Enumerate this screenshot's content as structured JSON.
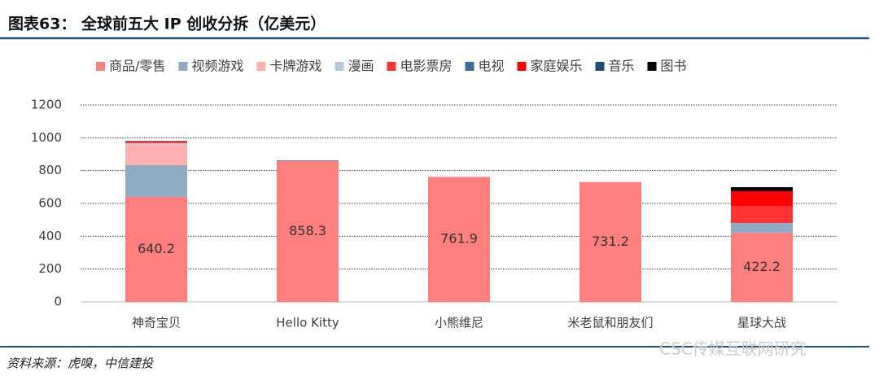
{
  "chart_data": {
    "type": "stacked_bar",
    "title": "图表63：  全球前五大 IP 创收分拆（亿美元）",
    "source": "资料来源：虎嗅，中信建投",
    "watermark": "CSC传媒互联网研究",
    "categories": [
      "神奇宝贝",
      "Hello Kitty",
      "小熊维尼",
      "米老鼠和朋友们",
      "星球大战"
    ],
    "series": [
      {
        "name": "商品/零售",
        "color": "#ff7f7f",
        "values": [
          640.2,
          858.3,
          761.9,
          731.2,
          422.2
        ],
        "data_labels": true
      },
      {
        "name": "视频游戏",
        "color": "#8eaac4",
        "values": [
          193,
          null,
          null,
          null,
          59
        ]
      },
      {
        "name": "卡牌游戏",
        "color": "#ffb0b0",
        "values": [
          128,
          null,
          null,
          null,
          null
        ]
      },
      {
        "name": "漫画",
        "color": "#b4c8d8",
        "values": [
          6,
          null,
          null,
          null,
          null
        ]
      },
      {
        "name": "电影票房",
        "color": "#ff3333",
        "values": [
          10,
          null,
          null,
          null,
          104
        ]
      },
      {
        "name": "电视",
        "color": "#3c6e96",
        "values": [
          5,
          4,
          null,
          null,
          null
        ]
      },
      {
        "name": "家庭娱乐",
        "color": "#ff0000",
        "values": [
          null,
          null,
          null,
          null,
          90
        ]
      },
      {
        "name": "音乐",
        "color": "#1f4e79",
        "values": [
          null,
          null,
          null,
          null,
          null
        ]
      },
      {
        "name": "图书",
        "color": "#000000",
        "values": [
          null,
          null,
          null,
          null,
          24
        ]
      }
    ],
    "ylim": [
      0,
      1200
    ],
    "yticks": [
      0,
      200,
      400,
      600,
      800,
      1000,
      1200
    ],
    "grid": true
  }
}
